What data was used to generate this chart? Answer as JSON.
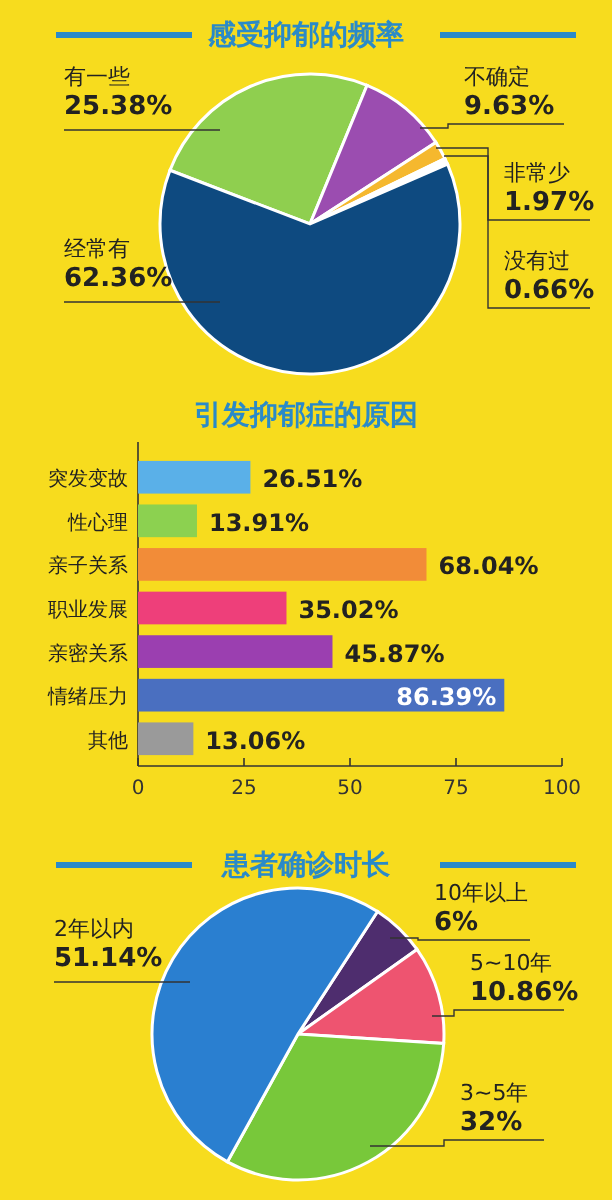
{
  "chart_data": [
    {
      "type": "pie",
      "title": "感受抑郁的频率",
      "categories": [
        "有一些",
        "不确定",
        "非常少",
        "没有过",
        "经常有"
      ],
      "values": [
        25.38,
        9.63,
        1.97,
        0.66,
        62.36
      ],
      "colors": [
        "#8fcf4f",
        "#9b4db0",
        "#f5b82e",
        "#ffffff",
        "#0e4a80"
      ],
      "value_labels": [
        "25.38%",
        "9.63%",
        "1.97%",
        "0.66%",
        "62.36%"
      ]
    },
    {
      "type": "bar",
      "orientation": "horizontal",
      "title": "引发抑郁症的原因",
      "categories": [
        "突发变故",
        "性心理",
        "亲子关系",
        "职业发展",
        "亲密关系",
        "情绪压力",
        "其他"
      ],
      "values": [
        26.51,
        13.91,
        68.04,
        35.02,
        45.87,
        86.39,
        13.06
      ],
      "colors": [
        "#5ab0e8",
        "#8cd150",
        "#f28c38",
        "#ee3f7a",
        "#9b3fb0",
        "#4a6fc0",
        "#9a9a9a"
      ],
      "value_labels": [
        "26.51%",
        "13.91%",
        "68.04%",
        "35.02%",
        "45.87%",
        "86.39%",
        "13.06%"
      ],
      "xlim": [
        0,
        100
      ],
      "xticks": [
        0,
        25,
        50,
        75,
        100
      ]
    },
    {
      "type": "pie",
      "title": "患者确诊时长",
      "categories": [
        "10年以上",
        "5~10年",
        "3~5年",
        "2年以内"
      ],
      "values": [
        6,
        10.86,
        32,
        51.14
      ],
      "colors": [
        "#4e2d6e",
        "#ee5470",
        "#78c83a",
        "#2a7fd0"
      ],
      "value_labels": [
        "6%",
        "10.86%",
        "32%",
        "51.14%"
      ]
    }
  ]
}
